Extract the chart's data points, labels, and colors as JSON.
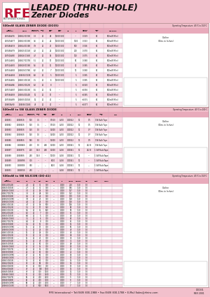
{
  "title_line1": "LEADED (THRU-HOLE)",
  "title_line2": "Zener Diodes",
  "header_bg": "#f2c0cc",
  "table_pink": "#f8dce6",
  "table_white": "#ffffff",
  "col_header_bg": "#e8aabb",
  "section_header_bg": "#f2c0cc",
  "footer_bg": "#f2c0cc",
  "footer_text": "RFE International • Tel:(949) 830-1988 • Fax:(949) 830-1788 • E-Mail Sales@rfeinc.com",
  "footer_right1": "C3C031",
  "footer_right2": "REV 2001",
  "logo_red": "#bb1133",
  "logo_gray": "#888888",
  "watermark_color": "#c8d4e8",
  "grid_color": "#ccaabb",
  "text_color": "#111111",
  "section1_title": "500mW GLASS ZENER DIODE (DO35)",
  "section1_temp": "Operating Temperature: -65°C to 150°C",
  "section1_outline": "Outline\n(Dim. in Inches)",
  "section2_title": "500mW to 5W GLASS ZENER DIODE",
  "section2_temp": "Operating Temperature: -65°C to 200°C",
  "section2_outline": "Outline\n(Dim. in Inches)",
  "section3_title": "500mW to 5W SILICON (DO-41)",
  "section3_temp": "Operating Temperature: -65°C to 150°C",
  "section3_outline": "Outline\n(Dim. in Inches)",
  "bg_color": "#ffffff",
  "s1_rows": [
    [
      "1N746/A/76",
      "1N4622/DO2B",
      "3.3",
      "20",
      "28",
      "1000/1500",
      "80",
      "---",
      "-0.059",
      "500mW(Mini)"
    ],
    [
      "1N747/A/77",
      "1N4623/DO3B",
      "3.6",
      "20",
      "24",
      "1000/1500",
      "80",
      "1000",
      "-0.063",
      "500mW(Mini)"
    ],
    [
      "1N748/A/78",
      "1N4624/DO4B",
      "3.9",
      "20",
      "23",
      "1000/1500",
      "80",
      "500",
      "-0.066",
      "500mW(Mini)"
    ],
    [
      "1N749/A/79",
      "1N4625/DO5B",
      "4.3",
      "20",
      "22",
      "1000/1500",
      "80",
      "200",
      "-0.070",
      "500mW(Mini)"
    ],
    [
      "1N750/A/80",
      "1N4626/DO6B",
      "4.7",
      "20",
      "19",
      "1000/1500",
      "80",
      "100",
      "-0.075",
      "500mW(Mini)"
    ],
    [
      "1N751/A/81",
      "1N4627/DO7B",
      "5.1",
      "20",
      "17",
      "1000/1500",
      "80",
      "50",
      "-0.080",
      "500mW(Mini)"
    ],
    [
      "1N752/A/82",
      "1N4628/DO8B",
      "5.6",
      "20",
      "11",
      "1000/1500",
      "80",
      "20",
      "-0.085",
      "500mW(Mini)"
    ],
    [
      "1N753/A/83",
      "1N4629/DO9B",
      "6.2",
      "20",
      "7",
      "1000/1500",
      "80",
      "10",
      "-0.090",
      "500mW(Mini)"
    ],
    [
      "1N754/A/84",
      "1N4630/D10B",
      "6.8",
      "20",
      "5",
      "1000/1500",
      "80",
      "5",
      "-0.095",
      "500mW(Mini)"
    ],
    [
      "1N755/A/85",
      "1N4631/D11B",
      "7.5",
      "20",
      "6",
      "1000/1500",
      "80",
      "5",
      "-0.095",
      "500mW(Mini)"
    ],
    [
      "1N756/A/86",
      "1N4632/D12B",
      "8.2",
      "20",
      "8",
      "---",
      "80",
      "5",
      "+0.040",
      "500mW(Mini)"
    ],
    [
      "1N757/A/87",
      "1N4633/D13B",
      "9.1",
      "20",
      "10",
      "---",
      "80",
      "5",
      "+0.056",
      "500mW(Mini)"
    ],
    [
      "1N758/A/88",
      "1N4634/D14B",
      "10",
      "20",
      "17",
      "---",
      "80",
      "5",
      "+0.065",
      "500mW(Mini)"
    ],
    [
      "1N759/A/89",
      "1N4635/D15B",
      "12",
      "20",
      "40",
      "---",
      "80",
      "5",
      "+0.075",
      "500mW(Mini)"
    ],
    [
      "1N960/A/90",
      "1N4636/D16B",
      "43",
      "20",
      "40",
      "---",
      "80",
      "5",
      "+0.077",
      "500mW(Mini)"
    ]
  ],
  "s2_rows": [
    [
      "1N4881",
      "1N4881S",
      "100",
      "7.5",
      "---",
      "17500",
      "0.200",
      "0.00022",
      "10",
      "0.5",
      "1W Bulk/Tape"
    ],
    [
      "1N4882",
      "1N4882S",
      "120",
      "7.5",
      "---",
      "17500",
      "0.200",
      "0.00022",
      "10",
      "0.5",
      "1W Bulk/Tape"
    ],
    [
      "1N4883",
      "1N4883S",
      "150",
      "1.0",
      "---",
      "15000",
      "0.200",
      "0.00022",
      "10",
      "0.7",
      "1W Bulk/Tape"
    ],
    [
      "1N4884",
      "1N4884S",
      "160",
      "1.0",
      "---",
      "15000",
      "0.200",
      "0.00022",
      "10",
      "0.7",
      "1W Bulk/Tape"
    ],
    [
      "1N4885",
      "1N4885S",
      "180",
      "1.0",
      "---",
      "12000",
      "0.200",
      "0.00022",
      "10",
      "0.9",
      "1W Bulk/Tape"
    ],
    [
      "1N4886",
      "1N4886S",
      "200",
      "1.0",
      "448",
      "11000",
      "0.200",
      "0.00041",
      "10",
      "222.8",
      "1W Bulk/Tape"
    ],
    [
      "1N4887",
      "1N4887S",
      "200",
      "14.8",
      "448",
      "11000",
      "0.226",
      "0.00041",
      "10",
      "222.8",
      "1.5W Bulk/Tape"
    ],
    [
      "1N4888",
      "1N4888S",
      "240",
      "14.8",
      "---",
      "10000",
      "0.226",
      "0.00041",
      "10",
      "---",
      "1.5W Bulk/Tape"
    ],
    [
      "1N4889",
      "1N4889S",
      "300",
      "---",
      "---",
      "8000",
      "0.226",
      "0.00041",
      "10",
      "---",
      "1.5W Bulk/Tape"
    ],
    [
      "1N4890",
      "1N4890S",
      "360",
      "---",
      "---",
      "6000",
      "0.226",
      "0.00041",
      "10",
      "---",
      "1.5W Bulk/Tape"
    ],
    [
      "1N4891",
      "1N4891S",
      "430",
      "---",
      "---",
      "---",
      "0.226",
      "0.00041",
      "10",
      "---",
      "1.5W Bulk/Tape"
    ]
  ],
  "s3_rows": [
    [
      "1N4614/D14B",
      "---",
      "2.4",
      "20",
      "30",
      "750",
      "---",
      "0.000",
      "210",
      "1.10",
      "1.0",
      "500mW Bulk/Tape"
    ],
    [
      "1N4615/D15B",
      "---",
      "2.7",
      "20",
      "30",
      "750",
      "---",
      "0.000",
      "185",
      "1.10",
      "1.0",
      "500mW Bulk/Tape"
    ],
    [
      "1N4616/D16B",
      "---",
      "3.0",
      "20",
      "29",
      "750",
      "---",
      "0.000",
      "167",
      "1.10",
      "1.0",
      "500mW Bulk/Tape"
    ],
    [
      "1N4617/D17B",
      "---",
      "3.3",
      "20",
      "28",
      "750",
      "---",
      "0.000",
      "152",
      "1.10",
      "1.0",
      "500mW Bulk/Tape"
    ],
    [
      "1N4618/D18B",
      "---",
      "3.6",
      "20",
      "24",
      "750",
      "---",
      "0.000",
      "139",
      "1.10",
      "1.0",
      "500mW Bulk/Tape"
    ],
    [
      "1N4619/D19B",
      "---",
      "3.9",
      "20",
      "23",
      "750",
      "---",
      "0.000",
      "128",
      "1.10",
      "1.0",
      "500mW Bulk/Tape"
    ],
    [
      "1N4620/D20B",
      "---",
      "4.3",
      "20",
      "22",
      "750",
      "---",
      "0.000",
      "116",
      "1.10",
      "1.0",
      "500mW Bulk/Tape"
    ],
    [
      "1N4621/D21B",
      "---",
      "4.7",
      "20",
      "19",
      "500",
      "---",
      "0.000",
      "106",
      "1.10",
      "1.0",
      "500mW Bulk/Tape"
    ],
    [
      "1N4622/D22B",
      "---",
      "5.1",
      "20",
      "17",
      "550",
      "---",
      "0.000",
      "98",
      "1.10",
      "1.0",
      "500mW Bulk/Tape"
    ],
    [
      "1N4623/D23B",
      "---",
      "5.6",
      "20",
      "11",
      "600",
      "---",
      "0.000",
      "89",
      "1.10",
      "1.0",
      "500mW Bulk/Tape"
    ],
    [
      "1N4624/D24B",
      "---",
      "6.2",
      "20",
      "7",
      "700",
      "---",
      "0.000",
      "81",
      "1.10",
      "1.0",
      "500mW Bulk/Tape"
    ],
    [
      "1N4625/D25B",
      "---",
      "6.8",
      "20",
      "5",
      "700",
      "---",
      "0.000",
      "74",
      "1.10",
      "1.0",
      "500mW Bulk/Tape"
    ],
    [
      "1N4626/D26B",
      "---",
      "7.5",
      "20",
      "6",
      "700",
      "---",
      "0.000",
      "67",
      "1.10",
      "1.0",
      "500mW Bulk/Tape"
    ],
    [
      "1N4627/D27B",
      "---",
      "8.2",
      "20",
      "8",
      "700",
      "---",
      "0.000",
      "61",
      "1.10",
      "1.0",
      "500mW Bulk/Tape"
    ],
    [
      "1N4628/D28B",
      "---",
      "9.1",
      "20",
      "10",
      "700",
      "---",
      "0.000",
      "55",
      "1.10",
      "1.0",
      "500mW Bulk/Tape"
    ],
    [
      "1N4629/D29B",
      "---",
      "10",
      "20",
      "17",
      "700",
      "---",
      "0.000",
      "50",
      "1.10",
      "1.0",
      "500mW Bulk/Tape"
    ],
    [
      "1N4630/D30B",
      "---",
      "11",
      "20",
      "22",
      "700",
      "---",
      "0.000",
      "45",
      "1.10",
      "1.0",
      "500mW Bulk/Tape"
    ],
    [
      "1N4631/D31B",
      "---",
      "12",
      "20",
      "29",
      "700",
      "---",
      "0.000",
      "42",
      "1.10",
      "1.0",
      "500mW Bulk/Tape"
    ],
    [
      "1N4632/D32B",
      "---",
      "13",
      "20",
      "33",
      "700",
      "---",
      "0.000",
      "38",
      "1.10",
      "1.0",
      "500mW Bulk/Tape"
    ],
    [
      "1N4633/D33B",
      "---",
      "15",
      "20",
      "40",
      "700",
      "---",
      "0.000",
      "33",
      "1.10",
      "1.0",
      "500mW Bulk/Tape"
    ],
    [
      "1N4634/D34B",
      "---",
      "16",
      "20",
      "45",
      "700",
      "---",
      "0.000",
      "31",
      "1.10",
      "1.0",
      "500mW Bulk/Tape"
    ],
    [
      "1N4635/D35B",
      "---",
      "18",
      "20",
      "50",
      "700",
      "---",
      "0.000",
      "28",
      "1.10",
      "1.0",
      "500mW Bulk/Tape"
    ],
    [
      "1N4636/D36B",
      "---",
      "20",
      "20",
      "55",
      "700",
      "---",
      "0.000",
      "25",
      "1.10",
      "1.0",
      "500mW Bulk/Tape"
    ],
    [
      "1N4637/D37B",
      "---",
      "22",
      "20",
      "55",
      "700",
      "---",
      "0.000",
      "23",
      "1.10",
      "1.0",
      "500mW Bulk/Tape"
    ],
    [
      "1N4638/D38B",
      "---",
      "24",
      "20",
      "80",
      "700",
      "---",
      "0.000",
      "21",
      "1.10",
      "1.0",
      "500mW Bulk/Tape"
    ],
    [
      "1N4639/D39B",
      "---",
      "27",
      "20",
      "80",
      "700",
      "---",
      "0.000",
      "19",
      "1.10",
      "1.0",
      "500mW Bulk/Tape"
    ],
    [
      "1N4640/D40B",
      "---",
      "30",
      "20",
      "80",
      "700",
      "---",
      "0.000",
      "17",
      "1.10",
      "1.0",
      "500mW Bulk/Tape"
    ],
    [
      "1N4641/D41B",
      "---",
      "33",
      "20",
      "80",
      "700",
      "---",
      "0.000",
      "15",
      "1.10",
      "1.0",
      "500mW Bulk/Tape"
    ],
    [
      "1N4642/D42B",
      "---",
      "36",
      "20",
      "90",
      "700",
      "---",
      "0.000",
      "14",
      "1.10",
      "1.0",
      "500mW Bulk/Tape"
    ],
    [
      "1N4643/D43B",
      "---",
      "39",
      "20",
      "130",
      "700",
      "---",
      "0.000",
      "13",
      "1.10",
      "1.0",
      "500mW Bulk/Tape"
    ],
    [
      "1N4644/D44B",
      "---",
      "43",
      "20",
      "190",
      "1000",
      "---",
      "0.000",
      "12",
      "1.10",
      "1.0",
      "500mW Bulk/Tape"
    ],
    [
      "1N4645/D45B",
      "---",
      "47",
      "20",
      "300",
      "1000",
      "---",
      "0.000",
      "11",
      "1.10",
      "1.0",
      "500mW Bulk/Tape"
    ],
    [
      "1N4646/D46B",
      "---",
      "51",
      "20",
      "300",
      "1500",
      "---",
      "0.000",
      "10",
      "1.10",
      "1.0",
      "500mW Bulk/Tape"
    ],
    [
      "1N4647/D47B",
      "---",
      "56",
      "20",
      "400",
      "2000",
      "---",
      "0.000",
      "9",
      "1.10",
      "1.0",
      "500mW Bulk/Tape"
    ],
    [
      "1N4648/D48B",
      "---",
      "62",
      "20",
      "400",
      "3000",
      "---",
      "0.000",
      "8",
      "1.10",
      "1.0",
      "500mW Bulk/Tape"
    ],
    [
      "1N4649/D49B",
      "---",
      "68",
      "20",
      "400",
      "4000",
      "---",
      "0.000",
      "7",
      "1.10",
      "1.0",
      "500mW Bulk/Tape"
    ],
    [
      "1N4650/D50B",
      "---",
      "75",
      "20",
      "500",
      "5000",
      "---",
      "0.000",
      "7",
      "1.10",
      "1.0",
      "500mW Bulk/Tape"
    ]
  ]
}
